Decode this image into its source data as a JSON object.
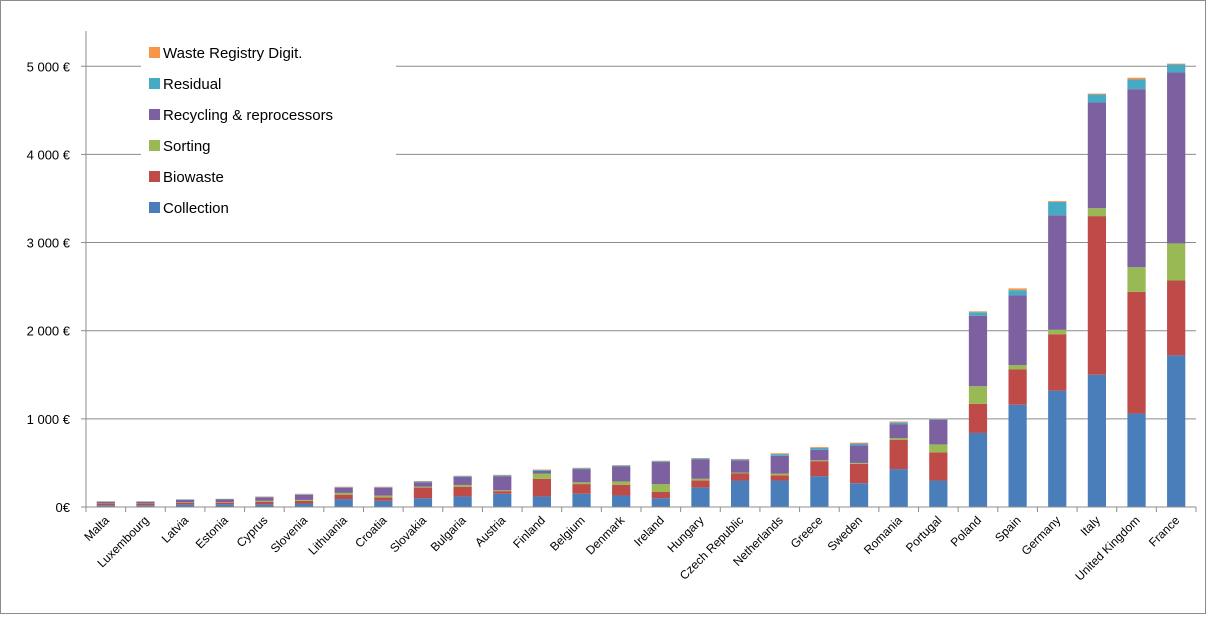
{
  "chart_data": {
    "type": "bar",
    "stacked": true,
    "categories": [
      "Malta",
      "Luxembourg",
      "Latvia",
      "Estonia",
      "Cyprus",
      "Slovenia",
      "Lithuania",
      "Croatia",
      "Slovakia",
      "Bulgaria",
      "Austria",
      "Finland",
      "Belgium",
      "Denmark",
      "Ireland",
      "Hungary",
      "Czech Republic",
      "Netherlands",
      "Greece",
      "Sweden",
      "Romania",
      "Portugal",
      "Poland",
      "Spain",
      "Germany",
      "Italy",
      "United Kingdom",
      "France"
    ],
    "series": [
      {
        "name": "Collection",
        "color": "#4a7ebb",
        "values": [
          20,
          20,
          30,
          30,
          30,
          40,
          90,
          70,
          100,
          120,
          150,
          120,
          150,
          130,
          100,
          220,
          300,
          300,
          350,
          270,
          430,
          300,
          840,
          1160,
          1320,
          1500,
          1060,
          1720
        ]
      },
      {
        "name": "Biowaste",
        "color": "#be4b48",
        "values": [
          20,
          20,
          20,
          20,
          30,
          30,
          50,
          40,
          120,
          110,
          30,
          200,
          110,
          120,
          70,
          80,
          80,
          60,
          170,
          220,
          330,
          320,
          330,
          400,
          640,
          1800,
          1380,
          850
        ]
      },
      {
        "name": "Sorting",
        "color": "#98b954",
        "values": [
          5,
          5,
          5,
          5,
          10,
          10,
          20,
          20,
          10,
          20,
          10,
          60,
          20,
          40,
          90,
          20,
          10,
          20,
          10,
          10,
          20,
          90,
          200,
          50,
          50,
          90,
          280,
          420
        ]
      },
      {
        "name": "Recycling & reprocessors",
        "color": "#7d60a0",
        "values": [
          15,
          15,
          25,
          30,
          40,
          60,
          60,
          90,
          50,
          90,
          160,
          30,
          150,
          170,
          250,
          220,
          140,
          200,
          120,
          200,
          160,
          280,
          800,
          790,
          1300,
          1200,
          2020,
          1940
        ]
      },
      {
        "name": "Residual",
        "color": "#46aac5",
        "values": [
          3,
          3,
          5,
          5,
          5,
          5,
          5,
          5,
          10,
          10,
          10,
          10,
          10,
          10,
          10,
          10,
          10,
          20,
          20,
          20,
          20,
          10,
          40,
          60,
          150,
          90,
          110,
          90
        ]
      },
      {
        "name": "Waste Registry Digit.",
        "color": "#f79646",
        "values": [
          2,
          2,
          2,
          3,
          5,
          5,
          5,
          5,
          5,
          5,
          5,
          5,
          5,
          5,
          5,
          5,
          5,
          10,
          10,
          10,
          10,
          5,
          10,
          20,
          10,
          10,
          20,
          10
        ]
      }
    ],
    "title": "",
    "xlabel": "",
    "ylabel": "",
    "ylim": [
      0,
      5400
    ],
    "yticks": [
      0,
      1000,
      2000,
      3000,
      4000,
      5000
    ],
    "ytick_labels": [
      "0€",
      "1 000 €",
      "2 000 €",
      "3 000 €",
      "4 000 €",
      "5 000 €"
    ],
    "grid": true,
    "legend_position": "top-left"
  }
}
